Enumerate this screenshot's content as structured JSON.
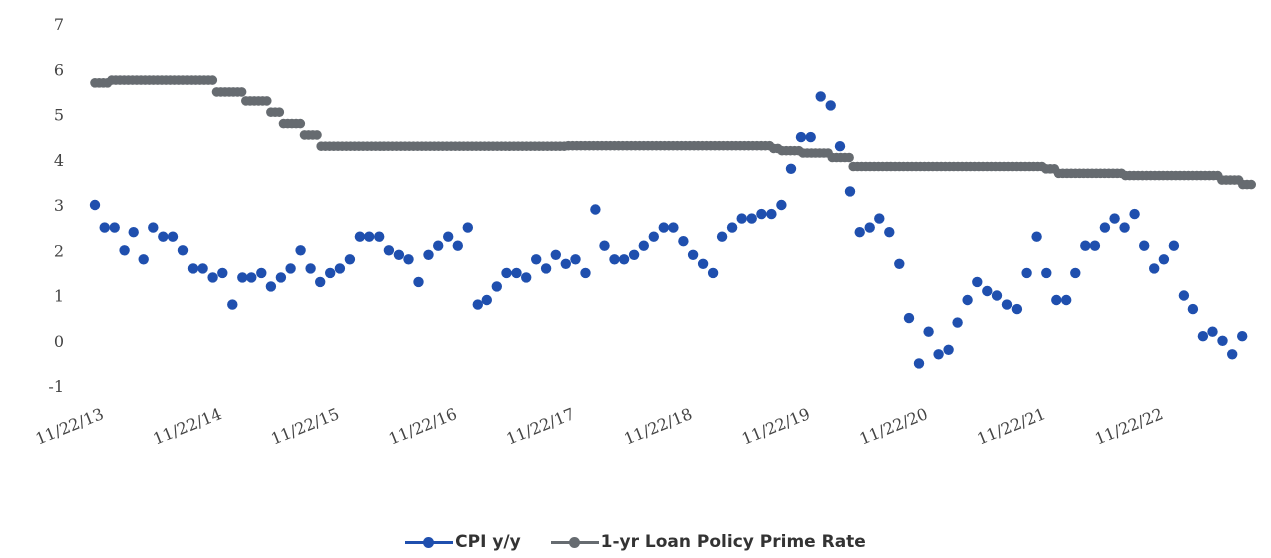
{
  "chart_data": {
    "type": "scatter",
    "title": "",
    "xlabel": "",
    "ylabel": "",
    "ylim": [
      -1,
      7
    ],
    "yticks": [
      "-1",
      "0",
      "1",
      "2",
      "3",
      "4",
      "5",
      "6",
      "7"
    ],
    "xticks": [
      "11/22/13",
      "11/22/14",
      "11/22/15",
      "11/22/16",
      "11/22/17",
      "11/22/18",
      "11/22/19",
      "11/22/20",
      "11/22/21",
      "11/22/22"
    ],
    "grid": false,
    "legend_position": "bottom",
    "series": [
      {
        "name": "CPI y/y",
        "color": "#1f4fae",
        "marker": "dot",
        "points": [
          [
            "2013-11",
            3.0
          ],
          [
            "2013-12",
            2.5
          ],
          [
            "2014-01",
            2.5
          ],
          [
            "2014-02",
            2.0
          ],
          [
            "2014-03",
            2.4
          ],
          [
            "2014-04",
            1.8
          ],
          [
            "2014-05",
            2.5
          ],
          [
            "2014-06",
            2.3
          ],
          [
            "2014-07",
            2.3
          ],
          [
            "2014-08",
            2.0
          ],
          [
            "2014-09",
            1.6
          ],
          [
            "2014-10",
            1.6
          ],
          [
            "2014-11",
            1.4
          ],
          [
            "2014-12",
            1.5
          ],
          [
            "2015-01",
            0.8
          ],
          [
            "2015-02",
            1.4
          ],
          [
            "2015-03",
            1.4
          ],
          [
            "2015-04",
            1.5
          ],
          [
            "2015-05",
            1.2
          ],
          [
            "2015-06",
            1.4
          ],
          [
            "2015-07",
            1.6
          ],
          [
            "2015-08",
            2.0
          ],
          [
            "2015-09",
            1.6
          ],
          [
            "2015-10",
            1.3
          ],
          [
            "2015-11",
            1.5
          ],
          [
            "2015-12",
            1.6
          ],
          [
            "2016-01",
            1.8
          ],
          [
            "2016-02",
            2.3
          ],
          [
            "2016-03",
            2.3
          ],
          [
            "2016-04",
            2.3
          ],
          [
            "2016-05",
            2.0
          ],
          [
            "2016-06",
            1.9
          ],
          [
            "2016-07",
            1.8
          ],
          [
            "2016-08",
            1.3
          ],
          [
            "2016-09",
            1.9
          ],
          [
            "2016-10",
            2.1
          ],
          [
            "2016-11",
            2.3
          ],
          [
            "2016-12",
            2.1
          ],
          [
            "2017-01",
            2.5
          ],
          [
            "2017-02",
            0.8
          ],
          [
            "2017-03",
            0.9
          ],
          [
            "2017-04",
            1.2
          ],
          [
            "2017-05",
            1.5
          ],
          [
            "2017-06",
            1.5
          ],
          [
            "2017-07",
            1.4
          ],
          [
            "2017-08",
            1.8
          ],
          [
            "2017-09",
            1.6
          ],
          [
            "2017-10",
            1.9
          ],
          [
            "2017-11",
            1.7
          ],
          [
            "2017-12",
            1.8
          ],
          [
            "2018-01",
            1.5
          ],
          [
            "2018-02",
            2.9
          ],
          [
            "2018-03",
            2.1
          ],
          [
            "2018-04",
            1.8
          ],
          [
            "2018-05",
            1.8
          ],
          [
            "2018-06",
            1.9
          ],
          [
            "2018-07",
            2.1
          ],
          [
            "2018-08",
            2.3
          ],
          [
            "2018-09",
            2.5
          ],
          [
            "2018-10",
            2.5
          ],
          [
            "2018-11",
            2.2
          ],
          [
            "2018-12",
            1.9
          ],
          [
            "2019-01",
            1.7
          ],
          [
            "2019-02",
            1.5
          ],
          [
            "2019-03",
            2.3
          ],
          [
            "2019-04",
            2.5
          ],
          [
            "2019-05",
            2.7
          ],
          [
            "2019-06",
            2.7
          ],
          [
            "2019-07",
            2.8
          ],
          [
            "2019-08",
            2.8
          ],
          [
            "2019-09",
            3.0
          ],
          [
            "2019-10",
            3.8
          ],
          [
            "2019-11",
            4.5
          ],
          [
            "2019-12",
            4.5
          ],
          [
            "2020-01",
            5.4
          ],
          [
            "2020-02",
            5.2
          ],
          [
            "2020-03",
            4.3
          ],
          [
            "2020-04",
            3.3
          ],
          [
            "2020-05",
            2.4
          ],
          [
            "2020-06",
            2.5
          ],
          [
            "2020-07",
            2.7
          ],
          [
            "2020-08",
            2.4
          ],
          [
            "2020-09",
            1.7
          ],
          [
            "2020-10",
            0.5
          ],
          [
            "2020-11",
            -0.5
          ],
          [
            "2020-12",
            0.2
          ],
          [
            "2021-01",
            -0.3
          ],
          [
            "2021-02",
            -0.2
          ],
          [
            "2021-03",
            0.4
          ],
          [
            "2021-04",
            0.9
          ],
          [
            "2021-05",
            1.3
          ],
          [
            "2021-06",
            1.1
          ],
          [
            "2021-07",
            1.0
          ],
          [
            "2021-08",
            0.8
          ],
          [
            "2021-09",
            0.7
          ],
          [
            "2021-10",
            1.5
          ],
          [
            "2021-11",
            2.3
          ],
          [
            "2021-12",
            1.5
          ],
          [
            "2022-01",
            0.9
          ],
          [
            "2022-02",
            0.9
          ],
          [
            "2022-03",
            1.5
          ],
          [
            "2022-04",
            2.1
          ],
          [
            "2022-05",
            2.1
          ],
          [
            "2022-06",
            2.5
          ],
          [
            "2022-07",
            2.7
          ],
          [
            "2022-08",
            2.5
          ],
          [
            "2022-09",
            2.8
          ],
          [
            "2022-10",
            2.1
          ],
          [
            "2022-11",
            1.6
          ],
          [
            "2022-12",
            1.8
          ],
          [
            "2023-01",
            2.1
          ],
          [
            "2023-02",
            1.0
          ],
          [
            "2023-03",
            0.7
          ],
          [
            "2023-04",
            0.1
          ],
          [
            "2023-05",
            0.2
          ],
          [
            "2023-06",
            0.0
          ],
          [
            "2023-07",
            -0.3
          ],
          [
            "2023-08",
            0.1
          ]
        ]
      },
      {
        "name": "1-yr Loan Policy Prime Rate",
        "color": "#666b70",
        "marker": "dot-dense",
        "steps": [
          [
            "2013-11-22",
            5.7
          ],
          [
            "2014-01-01",
            5.76
          ],
          [
            "2014-11-22",
            5.5
          ],
          [
            "2015-03-01",
            5.3
          ],
          [
            "2015-05-11",
            5.05
          ],
          [
            "2015-06-28",
            4.8
          ],
          [
            "2015-08-26",
            4.55
          ],
          [
            "2015-10-24",
            4.3
          ],
          [
            "2017-11-22",
            4.31
          ],
          [
            "2019-08-20",
            4.25
          ],
          [
            "2019-09-20",
            4.2
          ],
          [
            "2019-11-20",
            4.15
          ],
          [
            "2020-02-20",
            4.05
          ],
          [
            "2020-04-20",
            3.85
          ],
          [
            "2021-12-20",
            3.8
          ],
          [
            "2022-01-20",
            3.7
          ],
          [
            "2022-08-22",
            3.65
          ],
          [
            "2022-10-01",
            3.65
          ],
          [
            "2023-06-20",
            3.55
          ],
          [
            "2023-08-21",
            3.45
          ]
        ],
        "end": "2023-09-20"
      }
    ]
  }
}
